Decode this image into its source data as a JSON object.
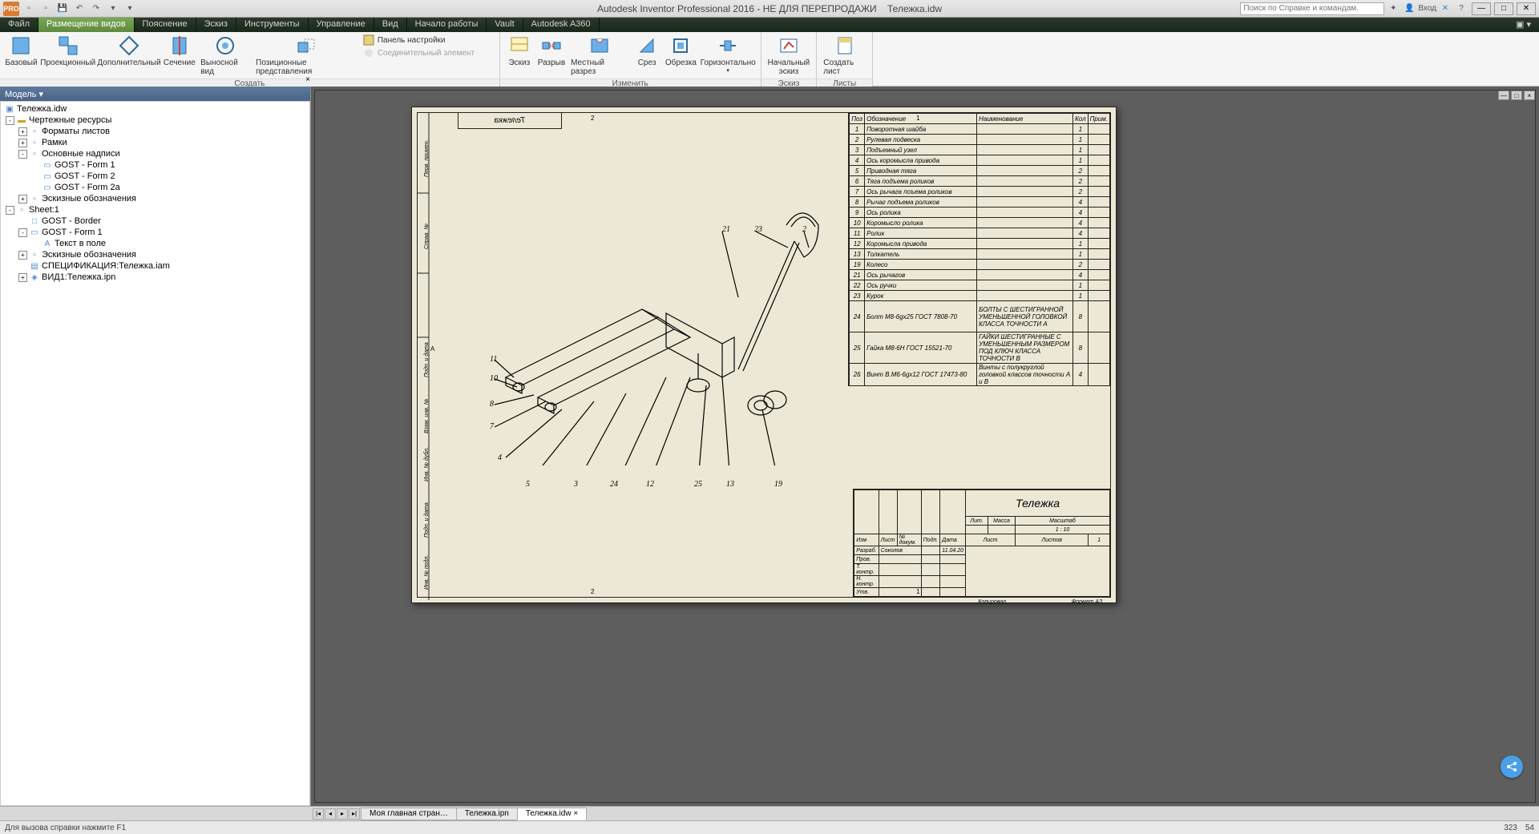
{
  "app": {
    "title_left": "Autodesk Inventor Professional 2016 - НЕ ДЛЯ ПЕРЕПРОДАЖИ",
    "filename": "Тележка.idw",
    "search_placeholder": "Поиск по Справке и командам.",
    "login": "Вход",
    "pro": "PRO"
  },
  "tabs": [
    "Файл",
    "Размещение видов",
    "Пояснение",
    "Эскиз",
    "Инструменты",
    "Управление",
    "Вид",
    "Начало работы",
    "Vault",
    "Autodesk A360"
  ],
  "ribbon": {
    "create": {
      "label": "Создать",
      "base": "Базовый",
      "proj": "Проекционный",
      "aux": "Дополнительный",
      "section": "Сечение",
      "detail": "Выносной вид",
      "pos": "Позиционные представления",
      "panel_settings": "Панель настройки",
      "conn_elem": "Соединительный элемент"
    },
    "modify": {
      "label": "Изменить",
      "sketch": "Эскиз",
      "break": "Разрыв",
      "local_cut": "Местный разрез",
      "cut": "Срез",
      "crop": "Обрезка",
      "horiz": "Горизонтально"
    },
    "sketch_g": {
      "label": "Эскиз",
      "start": "Начальный эскиз"
    },
    "sheets": {
      "label": "Листы",
      "create": "Создать лист"
    }
  },
  "browser": {
    "title": "Модель ▾",
    "root": "Тележка.idw",
    "items": [
      {
        "depth": 0,
        "toggle": "-",
        "icon": "folder",
        "label": "Чертежные ресурсы"
      },
      {
        "depth": 1,
        "toggle": "+",
        "icon": "sheet",
        "label": "Форматы листов"
      },
      {
        "depth": 1,
        "toggle": "+",
        "icon": "sheet",
        "label": "Рамки"
      },
      {
        "depth": 1,
        "toggle": "-",
        "icon": "sheet",
        "label": "Основные надписи"
      },
      {
        "depth": 2,
        "toggle": " ",
        "icon": "form",
        "label": "GOST - Form 1"
      },
      {
        "depth": 2,
        "toggle": " ",
        "icon": "form",
        "label": "GOST - Form 2"
      },
      {
        "depth": 2,
        "toggle": " ",
        "icon": "form",
        "label": "GOST - Form 2a"
      },
      {
        "depth": 1,
        "toggle": "+",
        "icon": "sheet",
        "label": "Эскизные обозначения"
      },
      {
        "depth": 0,
        "toggle": "-",
        "icon": "sheet",
        "label": "Sheet:1"
      },
      {
        "depth": 1,
        "toggle": " ",
        "icon": "border",
        "label": "GOST - Border"
      },
      {
        "depth": 1,
        "toggle": "-",
        "icon": "form",
        "label": "GOST - Form 1"
      },
      {
        "depth": 2,
        "toggle": " ",
        "icon": "text",
        "label": "Текст в поле"
      },
      {
        "depth": 1,
        "toggle": "+",
        "icon": "sheet",
        "label": "Эскизные обозначения"
      },
      {
        "depth": 1,
        "toggle": " ",
        "icon": "spec",
        "label": "СПЕЦИФИКАЦИЯ:Тележка.iam"
      },
      {
        "depth": 1,
        "toggle": "+",
        "icon": "view",
        "label": "ВИД1:Тележка.ipn"
      }
    ]
  },
  "doctabs": {
    "items": [
      "Моя главная стран…",
      "Тележка.ipn",
      "Тележка.idw ×"
    ],
    "active": 2
  },
  "status": {
    "left": "Для вызова справки нажмите F1",
    "coord1": "323",
    "coord2": "54"
  },
  "bom": {
    "headers": {
      "pos": "Поз",
      "desig": "Обозначение",
      "name": "Наименование",
      "qty": "Кол",
      "note": "Прим."
    },
    "rows": [
      {
        "pos": "1",
        "desig": "Поворотная шайба",
        "name": "",
        "qty": "1",
        "note": ""
      },
      {
        "pos": "2",
        "desig": "Рулевая подвеска",
        "name": "",
        "qty": "1",
        "note": ""
      },
      {
        "pos": "3",
        "desig": "Подъемный узел",
        "name": "",
        "qty": "1",
        "note": ""
      },
      {
        "pos": "4",
        "desig": "Ось коромысла привода",
        "name": "",
        "qty": "1",
        "note": ""
      },
      {
        "pos": "5",
        "desig": "Приводная тяга",
        "name": "",
        "qty": "2",
        "note": ""
      },
      {
        "pos": "6",
        "desig": "Тяга подъема роликов",
        "name": "",
        "qty": "2",
        "note": ""
      },
      {
        "pos": "7",
        "desig": "Ось рычага поъема роликов",
        "name": "",
        "qty": "2",
        "note": ""
      },
      {
        "pos": "8",
        "desig": "Рычаг подъема роликов",
        "name": "",
        "qty": "4",
        "note": ""
      },
      {
        "pos": "9",
        "desig": "Ось ролика",
        "name": "",
        "qty": "4",
        "note": ""
      },
      {
        "pos": "10",
        "desig": "Коромысло ролика",
        "name": "",
        "qty": "4",
        "note": ""
      },
      {
        "pos": "11",
        "desig": "Ролик",
        "name": "",
        "qty": "4",
        "note": ""
      },
      {
        "pos": "12",
        "desig": "Коромысла привода",
        "name": "",
        "qty": "1",
        "note": ""
      },
      {
        "pos": "13",
        "desig": "Толкатель",
        "name": "",
        "qty": "1",
        "note": ""
      },
      {
        "pos": "19",
        "desig": "Колесо",
        "name": "",
        "qty": "2",
        "note": ""
      },
      {
        "pos": "21",
        "desig": "Ось рычагов",
        "name": "",
        "qty": "4",
        "note": ""
      },
      {
        "pos": "22",
        "desig": "Ось ручки",
        "name": "",
        "qty": "1",
        "note": ""
      },
      {
        "pos": "23",
        "desig": "Курок",
        "name": "",
        "qty": "1",
        "note": ""
      },
      {
        "pos": "24",
        "desig": "Болт М8-6gx25 ГОСТ 7808-70",
        "name": "БОЛТЫ С ШЕСТИГРАННОЙ УМЕНЬШЕННОЙ ГОЛОВКОЙ КЛАССА ТОЧНОСТИ А",
        "qty": "8",
        "note": ""
      },
      {
        "pos": "25",
        "desig": "Гайка М8-6Н ГОСТ 15521-70",
        "name": "ГАЙКИ ШЕСТИГРАННЫЕ С УМЕНЬШЕННЫМ РАЗМЕРОМ  ПОД КЛЮЧ КЛАССА ТОЧНОСТИ В",
        "qty": "8",
        "note": ""
      },
      {
        "pos": "26",
        "desig": "Винт В.М6-6gx12 ГОСТ 17473-80",
        "name": "Винты с полукруглой головкой классов точности А и В",
        "qty": "4",
        "note": ""
      }
    ]
  },
  "titleblock": {
    "title": "Тележка",
    "scale": "1 : 10",
    "lit": "Лит.",
    "mass": "Масса",
    "scale_h": "Масштаб",
    "sheet": "Лист",
    "sheets": "Листов",
    "sheets_n": "1",
    "dev": "Разраб.",
    "dev_name": "Соколов",
    "date": "11.04.20",
    "check": "Пров.",
    "tk": "Т. контр.",
    "nk": "Н. контр.",
    "utv": "Утв.",
    "izm": "Изм",
    "list": "Лист",
    "ndoc": "№ докум.",
    "sign": "Подп.",
    "date_h": "Дата",
    "copied": "Копировал",
    "format": "Формат А3"
  },
  "callouts": {
    "r1": "21",
    "r2": "23",
    "r3": "2",
    "l1": "11",
    "l2": "10",
    "l3": "8",
    "l4": "7",
    "l5": "4",
    "b1": "5",
    "b2": "3",
    "b3": "24",
    "b4": "12",
    "b5": "25",
    "b6": "13",
    "b7": "19"
  },
  "paper": {
    "top_label": "Тележка",
    "side1": "Перв. примен.",
    "side2": "Справ. №",
    "side3": "Подп. и дата",
    "side4": "Взам. инв. №",
    "side5": "Инв. № дубл.",
    "side6": "Подп. и дата",
    "side7": "Инв. № подл."
  },
  "colors": {
    "paper": "#ece8d5",
    "accent": "#5e8a3e",
    "title_grad_a": "#5f7a9c"
  }
}
